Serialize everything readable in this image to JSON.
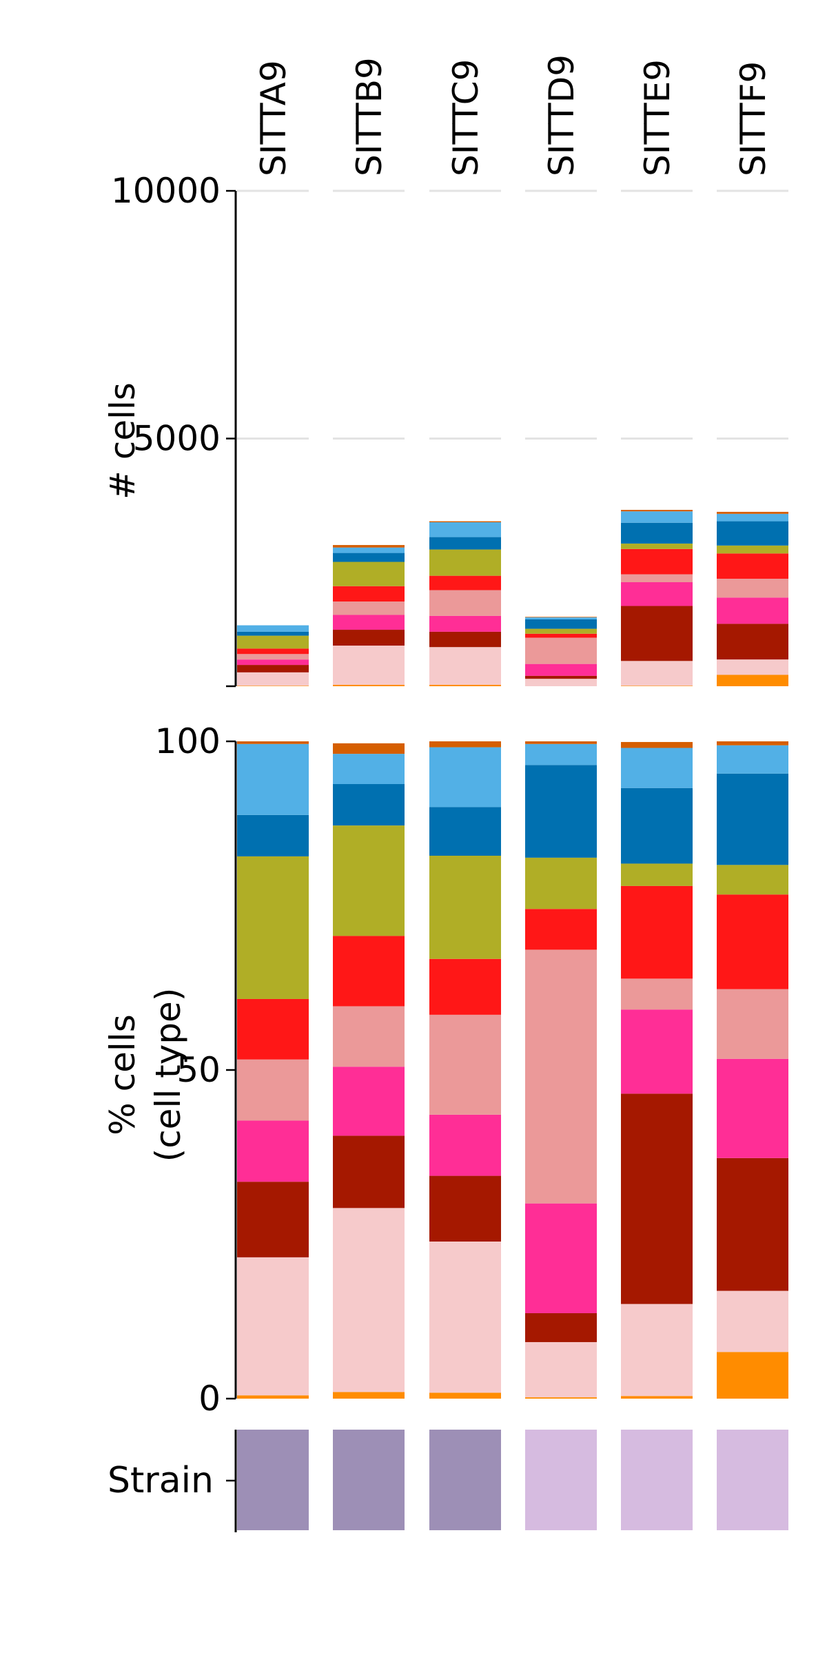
{
  "chart_data": [
    {
      "type": "bar",
      "stacked": true,
      "categories": [
        "SITTA9",
        "SITTB9",
        "SITTC9",
        "SITTD9",
        "SITTE9",
        "SITTF9"
      ],
      "ylabel": "# cells",
      "ylim": [
        0,
        10000
      ],
      "yticks": [
        "10000",
        "5000"
      ],
      "grid": true,
      "series": [
        {
          "color": "#ff8c00",
          "values": [
            10,
            30,
            30,
            0,
            10,
            230
          ]
        },
        {
          "color": "#f6cacb",
          "values": [
            270,
            790,
            760,
            150,
            500,
            310
          ]
        },
        {
          "color": "#a51800",
          "values": [
            150,
            320,
            310,
            60,
            1110,
            720
          ]
        },
        {
          "color": "#ff2e96",
          "values": [
            110,
            300,
            320,
            240,
            480,
            530
          ]
        },
        {
          "color": "#eb9999",
          "values": [
            110,
            270,
            520,
            530,
            160,
            380
          ]
        },
        {
          "color": "#ff1717",
          "values": [
            110,
            310,
            290,
            80,
            510,
            510
          ]
        },
        {
          "color": "#b0ae26",
          "values": [
            260,
            490,
            530,
            100,
            110,
            160
          ]
        },
        {
          "color": "#0070b0",
          "values": [
            80,
            180,
            250,
            190,
            420,
            490
          ]
        },
        {
          "color": "#52b0e6",
          "values": [
            130,
            110,
            300,
            40,
            230,
            150
          ]
        },
        {
          "color": "#d55e00",
          "values": [
            0,
            50,
            20,
            10,
            30,
            40
          ]
        }
      ]
    },
    {
      "type": "bar",
      "stacked": true,
      "categories": [
        "SITTA9",
        "SITTB9",
        "SITTC9",
        "SITTD9",
        "SITTE9",
        "SITTF9"
      ],
      "ylabel": "% cells\n(cell type)",
      "ylim": [
        0,
        100
      ],
      "yticks": [
        "100",
        "50",
        "0"
      ],
      "series": [
        {
          "color": "#ff8c00",
          "values": [
            0.5,
            1.0,
            0.9,
            0.2,
            0.4,
            7.1
          ]
        },
        {
          "color": "#f6cacb",
          "values": [
            21,
            28,
            23,
            8.4,
            14,
            9.3
          ]
        },
        {
          "color": "#a51800",
          "values": [
            11.5,
            11,
            10,
            4.4,
            32,
            20.2
          ]
        },
        {
          "color": "#ff2e96",
          "values": [
            9.3,
            10.5,
            9.3,
            16.7,
            12.8,
            15.1
          ]
        },
        {
          "color": "#eb9999",
          "values": [
            9.3,
            9.2,
            15.2,
            38.6,
            4.7,
            10.6
          ]
        },
        {
          "color": "#ff1717",
          "values": [
            9.2,
            10.7,
            8.5,
            6.2,
            14.1,
            14.4
          ]
        },
        {
          "color": "#b0ae26",
          "values": [
            21.7,
            16.8,
            15.7,
            7.8,
            3.4,
            4.5
          ]
        },
        {
          "color": "#0070b0",
          "values": [
            6.3,
            6.3,
            7.4,
            14.1,
            11.5,
            13.9
          ]
        },
        {
          "color": "#52b0e6",
          "values": [
            10.8,
            4.6,
            9.1,
            3.2,
            6.1,
            4.3
          ]
        },
        {
          "color": "#d55e00",
          "values": [
            0.4,
            1.6,
            0.9,
            0.4,
            0.9,
            0.6
          ]
        }
      ]
    }
  ],
  "strain_track": {
    "label": "Strain",
    "colors": [
      "#9d8fb6",
      "#9d8fb6",
      "#9d8fb6",
      "#d6bbe0",
      "#d6bbe0",
      "#d6bbe0"
    ]
  }
}
